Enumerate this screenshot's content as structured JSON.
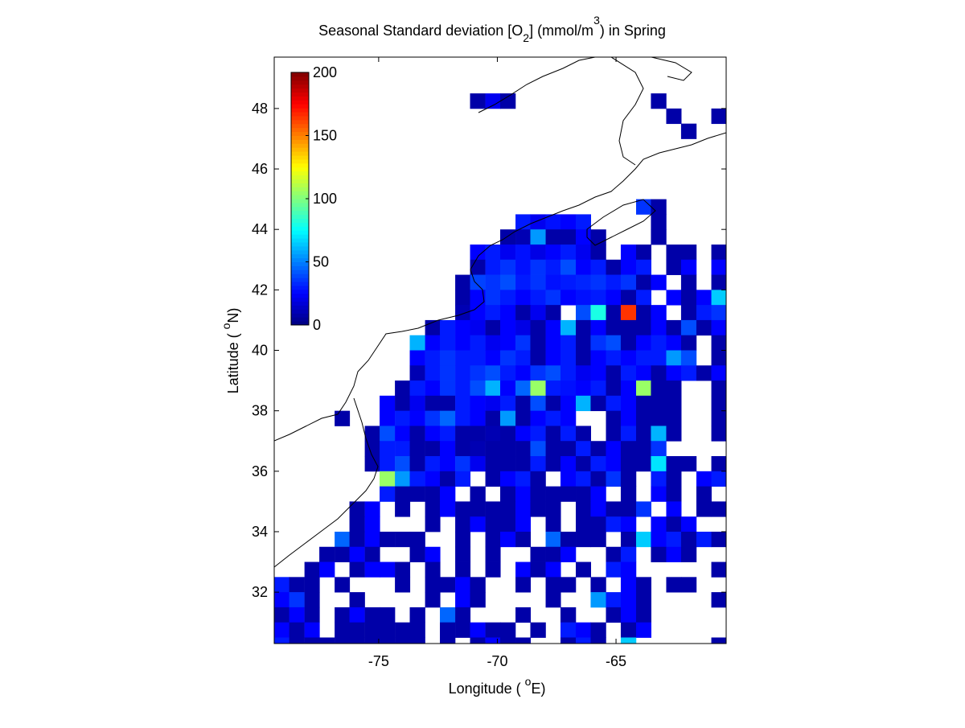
{
  "chart_data": {
    "type": "heatmap",
    "title_parts": [
      "Seasonal Standard deviation [O",
      "2",
      "] (mmol/m",
      "3",
      ") in  Spring"
    ],
    "xlabel_parts": [
      "Longitude ( ",
      "o",
      "E)"
    ],
    "ylabel_parts": [
      "Latitude ( ",
      "o",
      "N)"
    ],
    "colormap": "jet",
    "clim": [
      0,
      200
    ],
    "cticks": [
      0,
      50,
      100,
      150,
      200
    ],
    "xlim": [
      -79.4,
      -60.36
    ],
    "ylim": [
      30.3,
      49.7
    ],
    "xticks": [
      -75,
      -70,
      -65
    ],
    "yticks": [
      32,
      34,
      36,
      38,
      40,
      42,
      44,
      46,
      48
    ],
    "x": [
      -79.08,
      -78.45,
      -77.81,
      -77.18,
      -76.54,
      -75.91,
      -75.27,
      -74.64,
      -74.0,
      -73.37,
      -72.73,
      -72.1,
      -71.46,
      -70.83,
      -70.19,
      -69.56,
      -68.92,
      -68.29,
      -67.65,
      -67.02,
      -66.38,
      -65.75,
      -65.11,
      -64.48,
      -63.84,
      -63.21,
      -62.57,
      -61.94,
      -61.3,
      -60.67
    ],
    "y": [
      48.25,
      47.75,
      47.25,
      46.75,
      46.25,
      45.75,
      45.25,
      44.75,
      44.25,
      43.75,
      43.25,
      42.75,
      42.25,
      41.75,
      41.25,
      40.75,
      40.25,
      39.75,
      39.25,
      38.75,
      38.25,
      37.75,
      37.25,
      36.75,
      36.25,
      35.75,
      35.25,
      34.75,
      34.25,
      33.75,
      33.25,
      32.75,
      32.25,
      31.75,
      31.25,
      30.75,
      30.25
    ],
    "z": [
      [
        null,
        null,
        null,
        null,
        null,
        null,
        null,
        null,
        null,
        null,
        null,
        null,
        null,
        8,
        22,
        8,
        null,
        null,
        null,
        null,
        null,
        null,
        null,
        null,
        null,
        8,
        null,
        null,
        null,
        null
      ],
      [
        null,
        null,
        null,
        null,
        null,
        null,
        null,
        null,
        null,
        null,
        null,
        null,
        null,
        null,
        null,
        null,
        null,
        null,
        null,
        null,
        null,
        null,
        null,
        null,
        null,
        null,
        8,
        null,
        null,
        8
      ],
      [
        null,
        null,
        null,
        null,
        null,
        null,
        null,
        null,
        null,
        null,
        null,
        null,
        null,
        null,
        null,
        null,
        null,
        null,
        null,
        null,
        null,
        null,
        null,
        null,
        null,
        null,
        null,
        8,
        null,
        null
      ],
      [
        null,
        null,
        null,
        null,
        null,
        null,
        null,
        null,
        null,
        null,
        null,
        null,
        null,
        null,
        null,
        null,
        null,
        null,
        null,
        null,
        null,
        null,
        null,
        null,
        null,
        null,
        null,
        null,
        null,
        null
      ],
      [
        null,
        null,
        null,
        null,
        null,
        null,
        null,
        null,
        null,
        null,
        null,
        null,
        null,
        null,
        null,
        null,
        null,
        null,
        null,
        null,
        null,
        null,
        null,
        null,
        null,
        null,
        null,
        null,
        null,
        null
      ],
      [
        null,
        null,
        null,
        null,
        null,
        null,
        null,
        null,
        null,
        null,
        null,
        null,
        null,
        null,
        null,
        null,
        null,
        null,
        null,
        null,
        null,
        null,
        null,
        null,
        null,
        null,
        null,
        null,
        null,
        null
      ],
      [
        null,
        null,
        null,
        null,
        null,
        null,
        null,
        null,
        null,
        null,
        null,
        null,
        null,
        null,
        null,
        null,
        null,
        null,
        null,
        null,
        null,
        null,
        null,
        null,
        null,
        null,
        null,
        null,
        null,
        null
      ],
      [
        null,
        null,
        null,
        null,
        null,
        null,
        null,
        null,
        null,
        null,
        null,
        null,
        null,
        null,
        null,
        null,
        null,
        null,
        null,
        null,
        null,
        null,
        null,
        null,
        35,
        8,
        null,
        null,
        null,
        null
      ],
      [
        null,
        null,
        null,
        null,
        null,
        null,
        null,
        null,
        null,
        null,
        null,
        null,
        null,
        null,
        null,
        null,
        30,
        22,
        28,
        25,
        30,
        null,
        null,
        null,
        null,
        8,
        null,
        null,
        null,
        null
      ],
      [
        null,
        null,
        null,
        null,
        null,
        null,
        null,
        null,
        null,
        null,
        null,
        null,
        null,
        null,
        null,
        8,
        10,
        55,
        8,
        8,
        25,
        8,
        null,
        null,
        null,
        8,
        null,
        null,
        null,
        null
      ],
      [
        null,
        null,
        null,
        null,
        null,
        null,
        null,
        null,
        null,
        null,
        null,
        null,
        null,
        25,
        30,
        22,
        28,
        20,
        25,
        30,
        22,
        8,
        null,
        25,
        8,
        null,
        8,
        8,
        null,
        8
      ],
      [
        null,
        null,
        null,
        null,
        null,
        null,
        null,
        null,
        null,
        null,
        null,
        null,
        null,
        8,
        30,
        35,
        28,
        35,
        30,
        40,
        25,
        30,
        8,
        25,
        30,
        null,
        8,
        25,
        null,
        25
      ],
      [
        null,
        null,
        null,
        null,
        null,
        null,
        null,
        null,
        null,
        null,
        null,
        null,
        8,
        38,
        35,
        40,
        30,
        35,
        28,
        30,
        32,
        35,
        30,
        35,
        8,
        25,
        null,
        8,
        null,
        8
      ],
      [
        null,
        null,
        null,
        null,
        null,
        null,
        null,
        null,
        null,
        null,
        null,
        null,
        8,
        25,
        35,
        30,
        25,
        30,
        35,
        25,
        28,
        30,
        25,
        8,
        30,
        null,
        25,
        8,
        25,
        65
      ],
      [
        null,
        null,
        null,
        null,
        null,
        null,
        null,
        null,
        null,
        null,
        null,
        null,
        10,
        25,
        30,
        25,
        8,
        22,
        8,
        null,
        40,
        80,
        8,
        165,
        8,
        25,
        null,
        8,
        30,
        35
      ],
      [
        null,
        null,
        null,
        null,
        null,
        null,
        null,
        null,
        null,
        null,
        8,
        30,
        25,
        22,
        8,
        25,
        20,
        8,
        25,
        60,
        8,
        25,
        8,
        8,
        8,
        25,
        8,
        40,
        8,
        25
      ],
      [
        null,
        null,
        null,
        null,
        null,
        null,
        null,
        null,
        null,
        60,
        25,
        30,
        25,
        30,
        22,
        25,
        35,
        8,
        25,
        30,
        8,
        35,
        40,
        8,
        25,
        30,
        25,
        8,
        null,
        8
      ],
      [
        null,
        null,
        null,
        null,
        null,
        null,
        null,
        null,
        null,
        25,
        30,
        35,
        30,
        30,
        25,
        35,
        30,
        8,
        25,
        30,
        8,
        25,
        30,
        25,
        30,
        30,
        55,
        40,
        null,
        8
      ],
      [
        null,
        null,
        null,
        null,
        null,
        null,
        null,
        null,
        null,
        10,
        30,
        35,
        30,
        35,
        40,
        30,
        25,
        35,
        40,
        30,
        22,
        25,
        8,
        30,
        25,
        8,
        25,
        30,
        8,
        25
      ],
      [
        null,
        null,
        null,
        null,
        null,
        null,
        null,
        null,
        8,
        30,
        25,
        35,
        30,
        40,
        60,
        25,
        45,
        105,
        30,
        28,
        25,
        30,
        8,
        25,
        105,
        8,
        8,
        null,
        null,
        8
      ],
      [
        null,
        null,
        null,
        null,
        null,
        null,
        null,
        25,
        8,
        22,
        8,
        8,
        30,
        25,
        22,
        30,
        8,
        40,
        8,
        25,
        60,
        8,
        30,
        25,
        8,
        8,
        8,
        null,
        null,
        8
      ],
      [
        null,
        null,
        null,
        null,
        8,
        null,
        null,
        25,
        30,
        25,
        35,
        45,
        30,
        25,
        8,
        55,
        8,
        25,
        30,
        25,
        null,
        null,
        8,
        25,
        8,
        8,
        8,
        null,
        null,
        8
      ],
      [
        null,
        null,
        null,
        null,
        null,
        null,
        8,
        40,
        25,
        8,
        25,
        30,
        8,
        8,
        10,
        8,
        25,
        30,
        8,
        30,
        8,
        null,
        8,
        30,
        8,
        60,
        8,
        null,
        null,
        8
      ],
      [
        null,
        null,
        null,
        null,
        null,
        null,
        8,
        30,
        30,
        8,
        8,
        25,
        8,
        10,
        8,
        8,
        8,
        40,
        8,
        8,
        30,
        8,
        25,
        8,
        8,
        35,
        null,
        null,
        null,
        null
      ],
      [
        null,
        null,
        null,
        null,
        null,
        null,
        8,
        30,
        40,
        8,
        30,
        25,
        35,
        22,
        8,
        8,
        8,
        30,
        8,
        25,
        8,
        30,
        25,
        8,
        8,
        70,
        8,
        8,
        null,
        8
      ],
      [
        null,
        null,
        null,
        null,
        null,
        null,
        null,
        105,
        55,
        30,
        25,
        8,
        30,
        null,
        8,
        25,
        30,
        8,
        null,
        25,
        30,
        8,
        35,
        8,
        null,
        30,
        8,
        null,
        25,
        30
      ],
      [
        null,
        null,
        null,
        null,
        null,
        null,
        null,
        30,
        8,
        8,
        8,
        25,
        null,
        8,
        null,
        8,
        25,
        8,
        8,
        8,
        8,
        25,
        null,
        8,
        null,
        25,
        8,
        null,
        8,
        null
      ],
      [
        null,
        null,
        null,
        null,
        null,
        8,
        25,
        null,
        8,
        null,
        8,
        25,
        8,
        8,
        8,
        8,
        25,
        8,
        8,
        null,
        8,
        25,
        8,
        8,
        35,
        null,
        25,
        null,
        8,
        8
      ],
      [
        null,
        null,
        null,
        null,
        null,
        8,
        25,
        null,
        null,
        null,
        8,
        null,
        8,
        25,
        8,
        8,
        25,
        null,
        8,
        null,
        8,
        8,
        30,
        25,
        null,
        25,
        8,
        25,
        null,
        null
      ],
      [
        null,
        null,
        null,
        null,
        45,
        8,
        25,
        8,
        8,
        8,
        null,
        null,
        8,
        null,
        8,
        25,
        8,
        null,
        45,
        8,
        8,
        8,
        null,
        8,
        65,
        25,
        30,
        8,
        30,
        8
      ],
      [
        null,
        null,
        null,
        8,
        8,
        25,
        8,
        null,
        null,
        8,
        25,
        null,
        8,
        null,
        8,
        null,
        null,
        8,
        8,
        25,
        null,
        null,
        8,
        30,
        null,
        8,
        25,
        8,
        null,
        null
      ],
      [
        null,
        null,
        8,
        25,
        null,
        8,
        25,
        25,
        8,
        null,
        8,
        null,
        8,
        null,
        8,
        null,
        25,
        8,
        25,
        null,
        8,
        null,
        30,
        25,
        null,
        null,
        null,
        null,
        null,
        8
      ],
      [
        30,
        8,
        8,
        null,
        8,
        null,
        null,
        null,
        8,
        null,
        8,
        8,
        25,
        8,
        null,
        null,
        8,
        null,
        8,
        8,
        null,
        8,
        null,
        25,
        8,
        null,
        8,
        8,
        null,
        null
      ],
      [
        25,
        35,
        8,
        null,
        null,
        8,
        null,
        null,
        null,
        null,
        8,
        null,
        25,
        8,
        null,
        null,
        null,
        null,
        8,
        null,
        null,
        55,
        30,
        25,
        8,
        null,
        null,
        null,
        null,
        8
      ],
      [
        8,
        25,
        8,
        null,
        8,
        25,
        8,
        8,
        null,
        8,
        null,
        45,
        8,
        null,
        null,
        null,
        8,
        null,
        null,
        8,
        null,
        null,
        8,
        25,
        8,
        null,
        null,
        null,
        null,
        null
      ],
      [
        25,
        8,
        25,
        null,
        8,
        8,
        8,
        8,
        8,
        8,
        null,
        8,
        8,
        25,
        8,
        8,
        null,
        8,
        null,
        30,
        25,
        8,
        null,
        8,
        25,
        null,
        null,
        null,
        null,
        null
      ],
      [
        30,
        8,
        8,
        8,
        8,
        8,
        8,
        8,
        8,
        8,
        null,
        8,
        null,
        8,
        25,
        8,
        8,
        null,
        null,
        8,
        30,
        8,
        null,
        65,
        null,
        null,
        null,
        null,
        null,
        8
      ]
    ]
  }
}
